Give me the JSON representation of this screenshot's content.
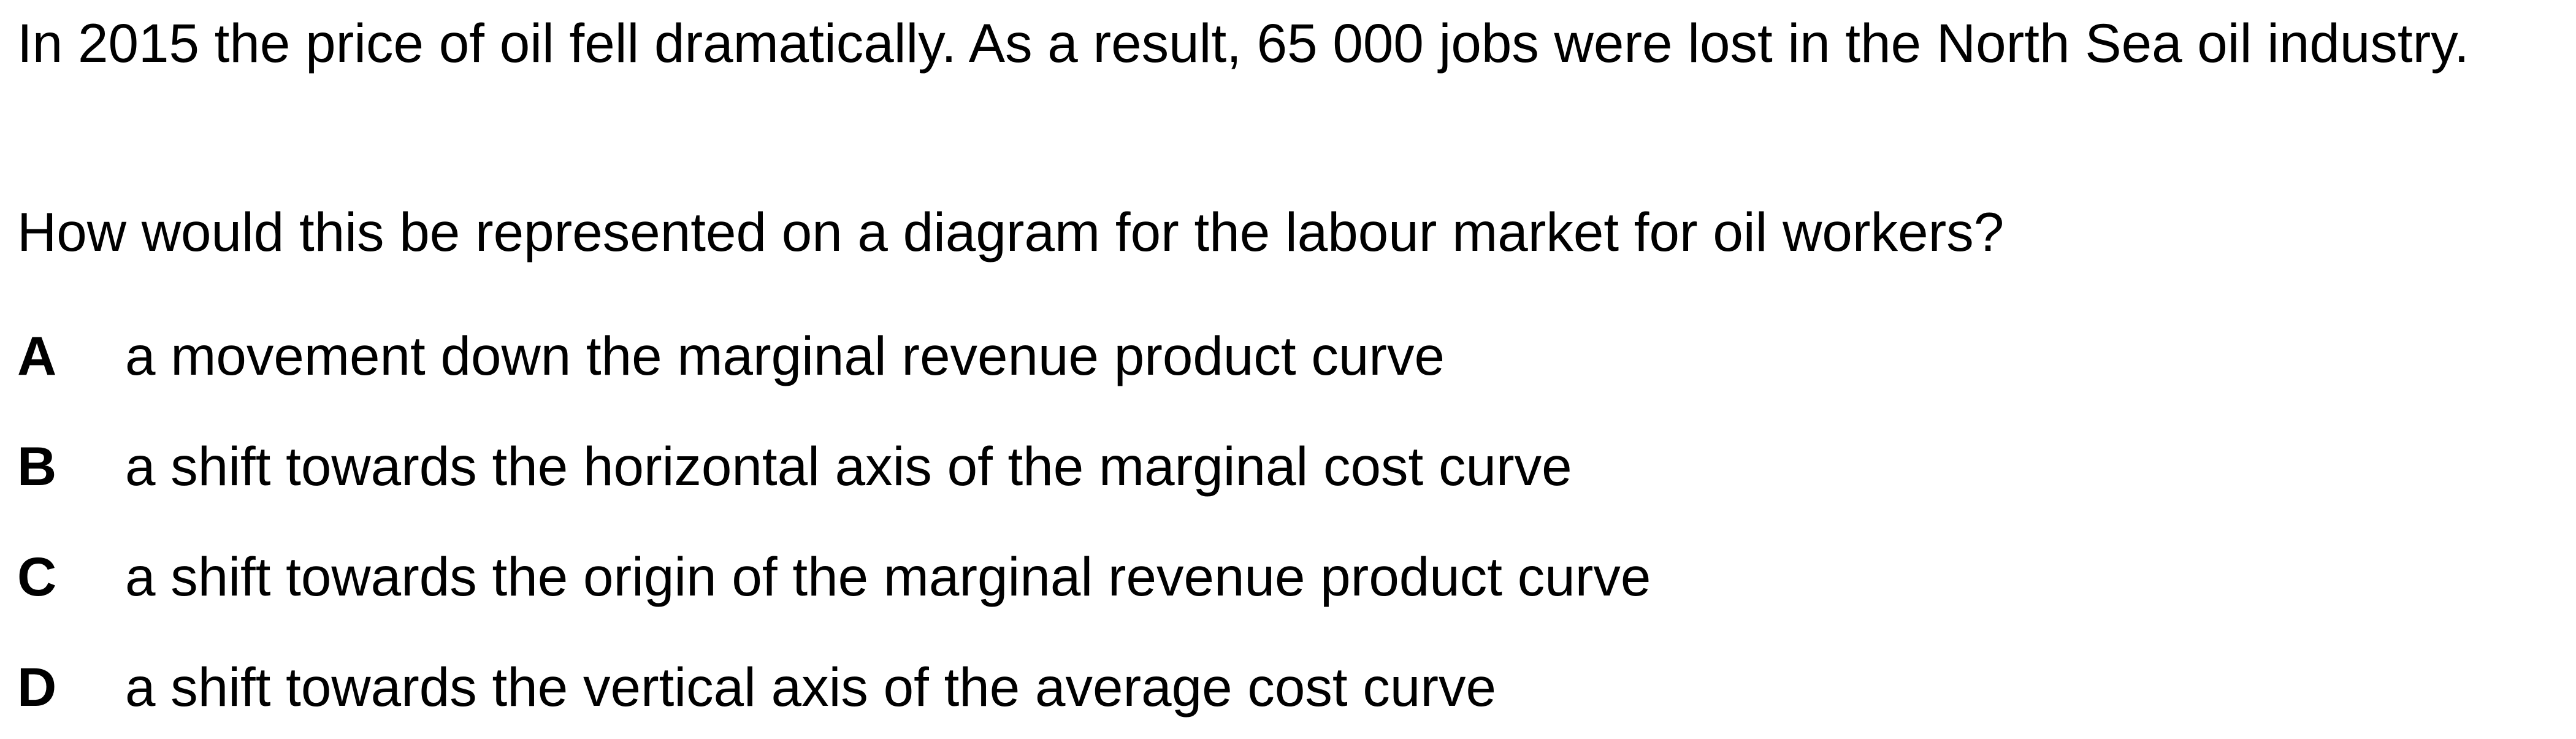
{
  "question": {
    "stem": "In 2015 the price of oil fell dramatically. As a result, 65 000 jobs were lost in the North Sea oil industry.",
    "prompt": "How would this be represented on a diagram for the labour market for oil workers?",
    "options": [
      {
        "letter": "A",
        "text": "a movement down the marginal revenue product curve"
      },
      {
        "letter": "B",
        "text": "a shift towards the horizontal axis of the marginal cost curve"
      },
      {
        "letter": "C",
        "text": "a shift towards the origin of the marginal revenue product curve"
      },
      {
        "letter": "D",
        "text": "a shift towards the vertical axis of the average cost curve"
      }
    ]
  }
}
